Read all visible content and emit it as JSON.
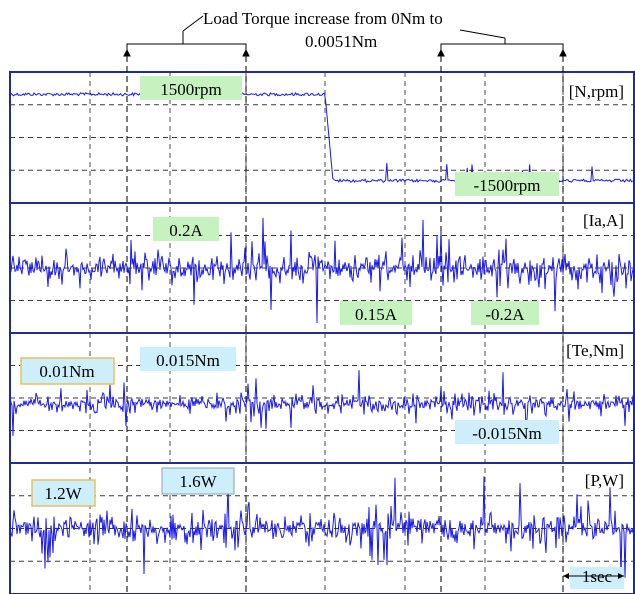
{
  "chart_data": {
    "type": "line",
    "annotation": {
      "line1": "Load Torque increase from 0Nm to",
      "line2": "0.0051Nm"
    },
    "time_marker": "1sec",
    "colors": {
      "trace": "#1a1aee",
      "frame": "#1f2d8c",
      "grid": "#3a3a3a",
      "green_box": "#c6f2c0",
      "blue_box": "#cdeefb",
      "yellow_border": "#e8c060"
    },
    "channels": [
      {
        "label": "[N,rpm]",
        "unit_meaning": "speed",
        "series": [
          {
            "segment": "before",
            "value": 1500
          },
          {
            "segment": "after",
            "value": -1500
          }
        ],
        "callouts": [
          {
            "text": "1500rpm",
            "style": "green"
          },
          {
            "text": "-1500rpm",
            "style": "green"
          }
        ]
      },
      {
        "label": "[Ia,A]",
        "unit_meaning": "current",
        "callouts": [
          {
            "text": "0.2A",
            "style": "green"
          },
          {
            "text": "0.15A",
            "style": "green"
          },
          {
            "text": "-0.2A",
            "style": "green"
          }
        ]
      },
      {
        "label": "[Te,Nm]",
        "unit_meaning": "torque",
        "callouts": [
          {
            "text": "0.01Nm",
            "style": "yellow"
          },
          {
            "text": "0.015Nm",
            "style": "blue"
          },
          {
            "text": "-0.015Nm",
            "style": "blue"
          }
        ]
      },
      {
        "label": "[P,W]",
        "unit_meaning": "power",
        "callouts": [
          {
            "text": "1.2W",
            "style": "yellow"
          },
          {
            "text": "1.6W",
            "style": "blue"
          }
        ]
      }
    ]
  }
}
